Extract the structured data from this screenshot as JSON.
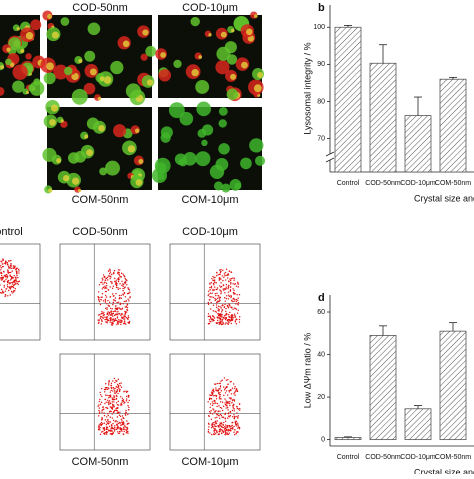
{
  "panels": {
    "image_labels": [
      "COD-50nm",
      "COD-10μm",
      "COM-50nm",
      "COM-10μm"
    ],
    "flow_labels": [
      "Control",
      "COD-50nm",
      "COD-10μm",
      "COM-50nm",
      "COM-10μm"
    ]
  },
  "chart_data": [
    {
      "type": "bar",
      "label": "b",
      "categories": [
        "Control",
        "COD-50nm",
        "COD-10μm",
        "COM-50nm"
      ],
      "values": [
        100,
        90.3,
        76.2,
        86
      ],
      "errors": [
        0.5,
        5,
        5,
        0.5
      ],
      "color": "#555555",
      "ylabel": "Lysosomal integrity / %",
      "xlabel": "Crystal size and type",
      "ylim": [
        61,
        106
      ],
      "yticks": [
        70,
        80,
        90,
        100
      ],
      "axis_break": true,
      "hatch": true
    },
    {
      "type": "bar",
      "label": "d",
      "categories": [
        "Control",
        "COD-50nm",
        "COD-10μm",
        "COM-50nm"
      ],
      "values": [
        1,
        49,
        14.5,
        51
      ],
      "errors": [
        0.3,
        4.5,
        1.5,
        4
      ],
      "color": "#555555",
      "ylabel": "Low ΔΨm ratio / %",
      "xlabel": "Crystal size and type",
      "ylim": [
        -3,
        68
      ],
      "yticks": [
        0,
        20,
        40,
        60
      ],
      "axis_break": false,
      "hatch": true
    }
  ]
}
